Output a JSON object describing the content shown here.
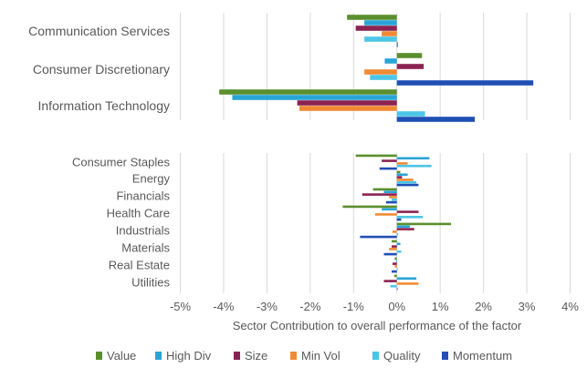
{
  "chart_data": {
    "type": "bar",
    "orientation": "horizontal",
    "xlabel": "Sector Contribution to overall performance of the factor",
    "xlim": [
      -5,
      4
    ],
    "xticks": [
      -5,
      -4,
      -3,
      -2,
      -1,
      0,
      1,
      2,
      3,
      4
    ],
    "xtick_labels": [
      "-5%",
      "-4%",
      "-3%",
      "-2%",
      "-1%",
      "0%",
      "1%",
      "2%",
      "3%",
      "4%"
    ],
    "grid": true,
    "legend_position": "bottom",
    "series": [
      {
        "name": "Value",
        "color": "#5a8f2e"
      },
      {
        "name": "High Div",
        "color": "#2aa4d6"
      },
      {
        "name": "Size",
        "color": "#8b2252"
      },
      {
        "name": "Min Vol",
        "color": "#f08a35"
      },
      {
        "name": "Quality",
        "color": "#4cc6e6"
      },
      {
        "name": "Momentum",
        "color": "#1f4fb3"
      }
    ],
    "panels": [
      {
        "name": "top",
        "categories": [
          "Communication Services",
          "Consumer Discretionary",
          "Information Technology"
        ],
        "values": {
          "Value": [
            -1.15,
            0.58,
            -4.1
          ],
          "High Div": [
            -0.75,
            -0.28,
            -3.8
          ],
          "Size": [
            -0.95,
            0.62,
            -2.3
          ],
          "Min Vol": [
            -0.35,
            -0.75,
            -2.25
          ],
          "Quality": [
            -0.75,
            -0.62,
            0.65
          ],
          "Momentum": [
            0.02,
            3.15,
            1.8
          ]
        }
      },
      {
        "name": "bottom",
        "categories": [
          "Consumer Staples",
          "Energy",
          "Financials",
          "Health Care",
          "Industrials",
          "Materials",
          "Real Estate",
          "Utilities"
        ],
        "values": {
          "Value": [
            -0.95,
            0.08,
            -0.55,
            -1.25,
            1.25,
            -0.12,
            -0.05,
            -0.06
          ],
          "High Div": [
            0.75,
            0.25,
            -0.3,
            -0.35,
            0.3,
            0.08,
            -0.02,
            0.45
          ],
          "Size": [
            -0.35,
            0.12,
            -0.8,
            0.5,
            0.4,
            -0.12,
            -0.1,
            -0.3
          ],
          "Min Vol": [
            0.25,
            0.38,
            -0.18,
            -0.5,
            -0.1,
            -0.18,
            -0.05,
            0.5
          ],
          "Quality": [
            0.8,
            0.45,
            -0.12,
            0.6,
            0.03,
            0.1,
            0.02,
            -0.15
          ],
          "Momentum": [
            -0.4,
            0.5,
            -0.25,
            0.1,
            -0.85,
            -0.3,
            -0.12,
            0.0
          ]
        }
      }
    ]
  }
}
